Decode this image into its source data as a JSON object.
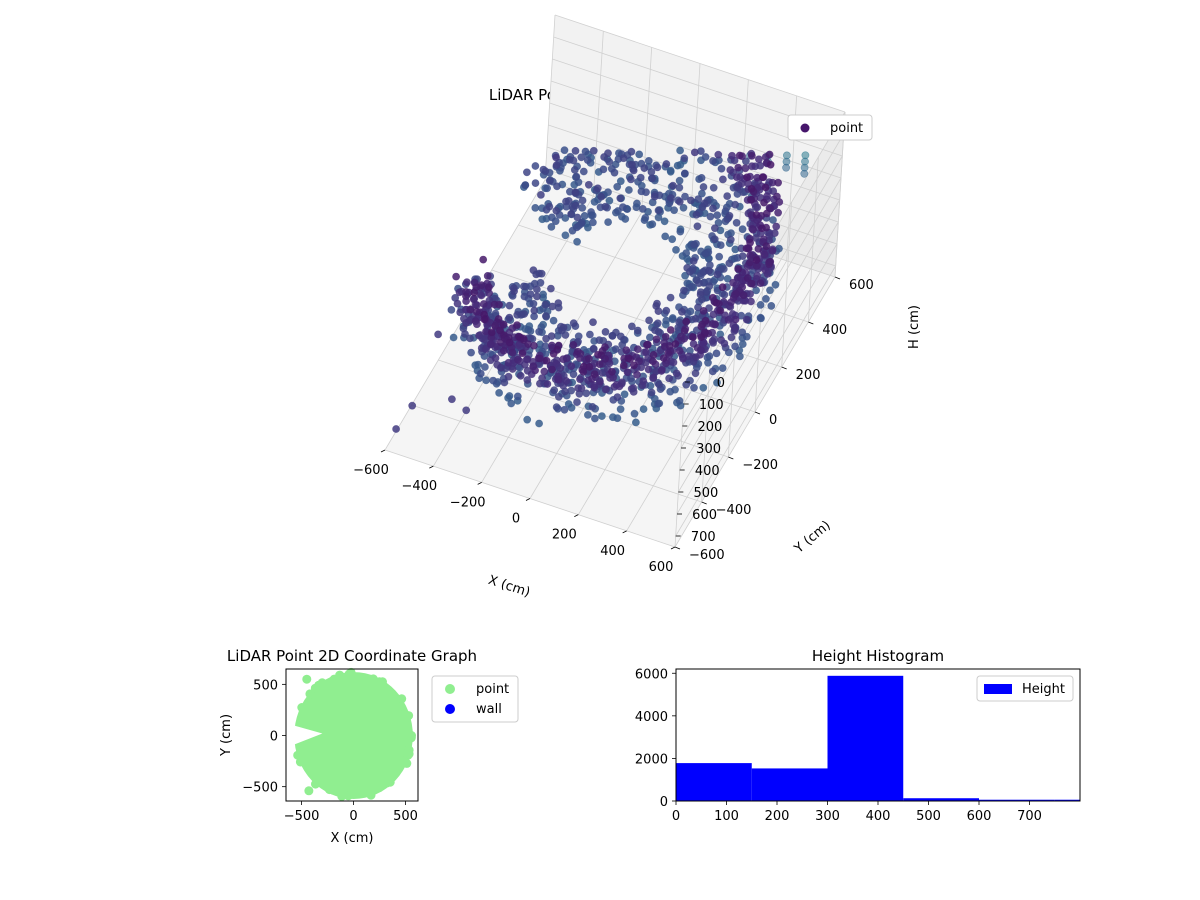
{
  "chart_data": [
    {
      "type": "scatter",
      "projection": "3d",
      "title": "LiDAR Point 3D Coordinate Graph",
      "xlabel": "X (cm)",
      "ylabel": "Y (cm)",
      "zlabel": "H (cm)",
      "xlim": [
        -600,
        600
      ],
      "ylim": [
        -600,
        600
      ],
      "zlim": [
        0,
        750
      ],
      "z_inverted": true,
      "xticks": [
        "−600",
        "−400",
        "−200",
        "0",
        "200",
        "400",
        "600"
      ],
      "yticks": [
        "−600",
        "−400",
        "−200",
        "0",
        "200",
        "400",
        "600"
      ],
      "zticks": [
        "0",
        "100",
        "200",
        "300",
        "400",
        "500",
        "600",
        "700"
      ],
      "legend": {
        "position": "top-right",
        "entries": [
          {
            "label": "point",
            "color": "#46166b"
          }
        ]
      },
      "colormap": "viridis",
      "grid": true,
      "description_of_points": {
        "ring_inner": {
          "radius_cm": [
            250,
            600
          ],
          "height_cm": [
            280,
            420
          ]
        },
        "ring_upper": {
          "radius_cm": [
            480,
            600
          ],
          "height_cm": [
            130,
            260
          ]
        },
        "wall_columns": {
          "x_cm": [
            -600,
            450
          ],
          "y_cm": 600,
          "height_cm": [
            0,
            350
          ]
        },
        "strays": [
          {
            "x": -520,
            "y": -560,
            "h": 560
          },
          {
            "x": -560,
            "y": -600,
            "h": 640
          },
          {
            "x": -380,
            "y": -520,
            "h": 520
          },
          {
            "x": -300,
            "y": -560,
            "h": 500
          },
          {
            "x": -520,
            "y": -380,
            "h": 420
          },
          {
            "x": -420,
            "y": -300,
            "h": 380
          }
        ]
      }
    },
    {
      "type": "scatter",
      "title": "LiDAR Point 2D Coordinate Graph",
      "xlabel": "X (cm)",
      "ylabel": "Y (cm)",
      "xlim": [
        -650,
        620
      ],
      "ylim": [
        -640,
        650
      ],
      "xticks": [
        -500,
        0,
        500
      ],
      "yticks": [
        -500,
        0,
        500
      ],
      "legend": {
        "position": "outside-right",
        "entries": [
          {
            "label": "point",
            "color": "#90ee90"
          },
          {
            "label": "wall",
            "color": "#0000ff"
          }
        ]
      },
      "series": [
        {
          "name": "point",
          "color": "#90ee90",
          "shape": "disc with left notch",
          "radius_cm": [
            550,
            620
          ],
          "notch_center_x": -300,
          "notch_halfwidth_y": 120
        },
        {
          "name": "wall",
          "color": "#0000ff",
          "points": []
        }
      ]
    },
    {
      "type": "bar",
      "histogram": true,
      "title": "Height Histogram",
      "xlim": [
        0,
        800
      ],
      "ylim": [
        0,
        6200
      ],
      "xticks": [
        0,
        100,
        200,
        300,
        400,
        500,
        600,
        700
      ],
      "yticks": [
        0,
        2000,
        4000,
        6000
      ],
      "legend": {
        "position": "top-right",
        "entries": [
          {
            "label": "Height",
            "color": "#0000ff"
          }
        ]
      },
      "series": [
        {
          "name": "Height",
          "color": "#0000ff",
          "bins": [
            0,
            150,
            300,
            450,
            600,
            750
          ],
          "values": [
            1780,
            1530,
            5880,
            130,
            60
          ]
        }
      ]
    }
  ]
}
